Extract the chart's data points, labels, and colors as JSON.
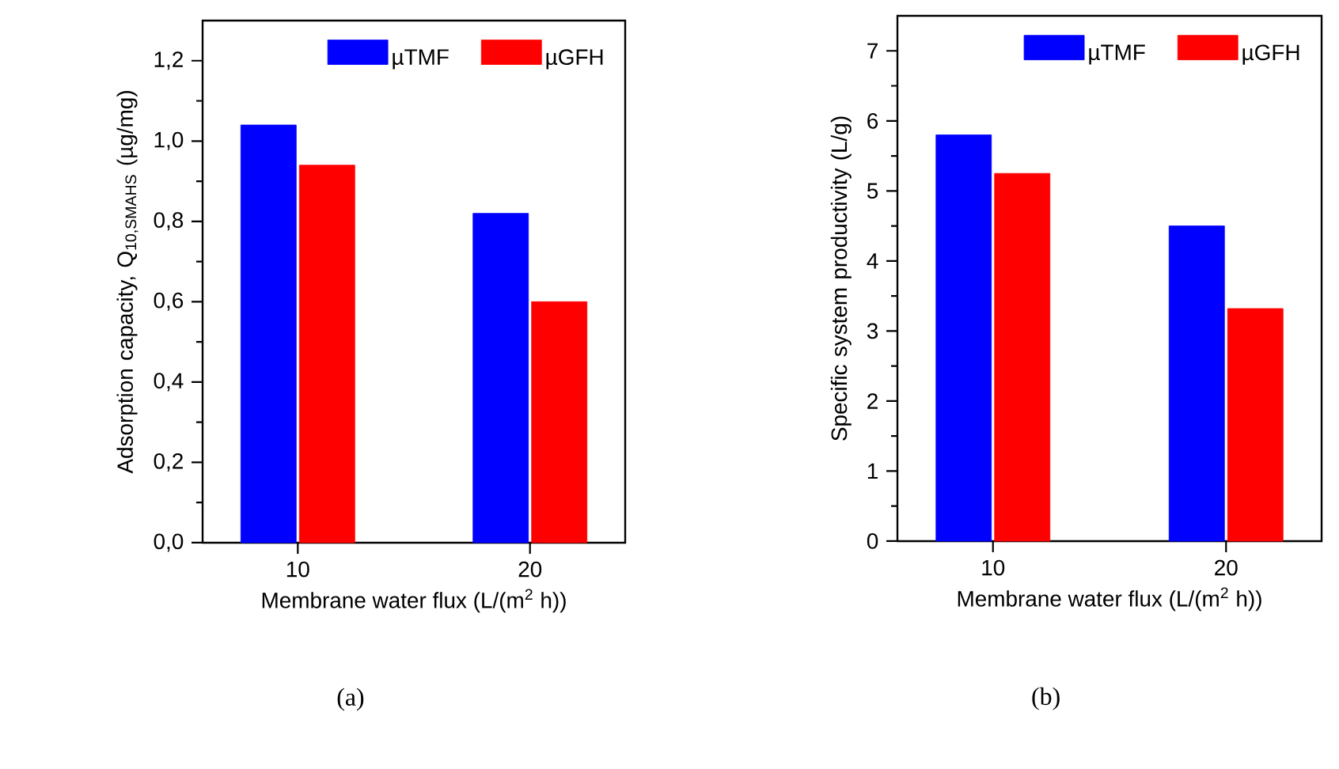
{
  "chart_data": [
    {
      "type": "bar",
      "categories": [
        "10",
        "20"
      ],
      "xlabel": "Membrane water flux (L/(m$^{2}$ h))",
      "ylabel": "Adsorption capacity, Q$_{10,SMAHS}$ (µg/mg)",
      "ylim": [
        0,
        1.3
      ],
      "yticks": [
        {
          "value": 0,
          "label": "0,0"
        },
        {
          "value": 0.2,
          "label": "0,2"
        },
        {
          "value": 0.4,
          "label": "0,4"
        },
        {
          "value": 0.6,
          "label": "0,6"
        },
        {
          "value": 0.8,
          "label": "0,8"
        },
        {
          "value": 1.0,
          "label": "1,0"
        },
        {
          "value": 1.2,
          "label": "1,2"
        }
      ],
      "legend": "top right",
      "annotations": [
        "(a)"
      ],
      "series": [
        {
          "name": "µTMF",
          "color": "#0000ff",
          "values": [
            1.04,
            0.82
          ]
        },
        {
          "name": "µGFH",
          "color": "#ff0000",
          "values": [
            0.94,
            0.6
          ]
        }
      ]
    },
    {
      "type": "bar",
      "categories": [
        "10",
        "20"
      ],
      "xlabel": "Membrane water flux (L/(m$^{2}$ h))",
      "ylabel": "Specific system productivity (L/g)",
      "ylim": [
        0,
        7.5
      ],
      "yticks": [
        0,
        1,
        2,
        3,
        4,
        5,
        6,
        7
      ],
      "legend": "top right",
      "annotations": [
        "(b)"
      ],
      "series": [
        {
          "name": "µTMF",
          "color": "#0000ff",
          "values": [
            5.8,
            4.5
          ]
        },
        {
          "name": "µGFH",
          "color": "#ff0000",
          "values": [
            5.25,
            3.32
          ]
        }
      ]
    }
  ]
}
